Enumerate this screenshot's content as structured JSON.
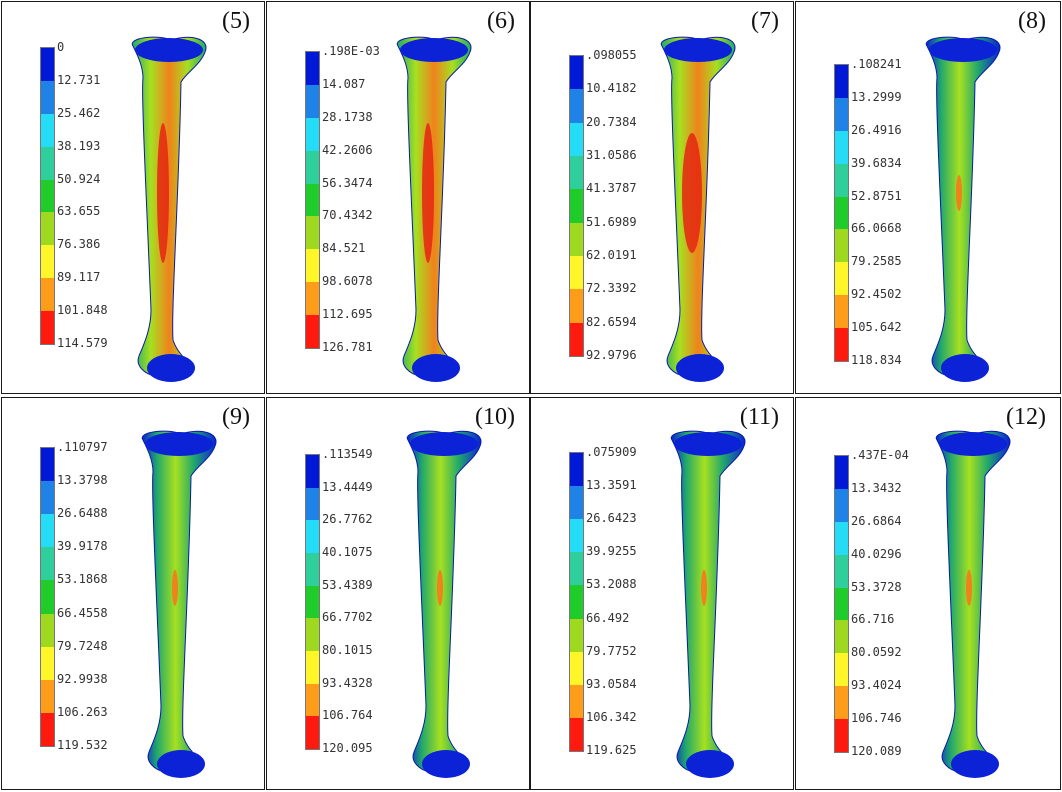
{
  "colors": {
    "scale": [
      "#0019d6",
      "#1f82e6",
      "#25dcf6",
      "#2ecf9a",
      "#1fcc2a",
      "#9ed81f",
      "#fff62a",
      "#ff9d1a",
      "#ff1a10"
    ],
    "bone_dark": "#0b22d6",
    "bone_mid": "#21a86b",
    "bone_light": "#a6e020",
    "bone_hot": "#f0821c",
    "bone_core": "#e52612"
  },
  "panels": [
    {
      "label": "(5)",
      "ticks": [
        "0",
        "12.731",
        "25.462",
        "38.193",
        "50.924",
        "63.655",
        "76.386",
        "89.117",
        "101.848",
        "114.579"
      ],
      "intensity": "high"
    },
    {
      "label": "(6)",
      "ticks": [
        ".198E-03",
        "14.087",
        "28.1738",
        "42.2606",
        "56.3474",
        "70.4342",
        "84.521",
        "98.6078",
        "112.695",
        "126.781"
      ],
      "intensity": "mid-high"
    },
    {
      "label": "(7)",
      "ticks": [
        ".098055",
        "10.4182",
        "20.7384",
        "31.0586",
        "41.3787",
        "51.6989",
        "62.0191",
        "72.3392",
        "82.6594",
        "92.9796"
      ],
      "intensity": "max"
    },
    {
      "label": "(8)",
      "ticks": [
        ".108241",
        "13.2999",
        "26.4916",
        "39.6834",
        "52.8751",
        "66.0668",
        "79.2585",
        "92.4502",
        "105.642",
        "118.834"
      ],
      "intensity": "low"
    },
    {
      "label": "(9)",
      "ticks": [
        ".110797",
        "13.3798",
        "26.6488",
        "39.9178",
        "53.1868",
        "66.4558",
        "79.7248",
        "92.9938",
        "106.263",
        "119.532"
      ],
      "intensity": "low"
    },
    {
      "label": "(10)",
      "ticks": [
        ".113549",
        "13.4449",
        "26.7762",
        "40.1075",
        "53.4389",
        "66.7702",
        "80.1015",
        "93.4328",
        "106.764",
        "120.095"
      ],
      "intensity": "low"
    },
    {
      "label": "(11)",
      "ticks": [
        ".075909",
        "13.3591",
        "26.6423",
        "39.9255",
        "53.2088",
        "66.492",
        "79.7752",
        "93.0584",
        "106.342",
        "119.625"
      ],
      "intensity": "low"
    },
    {
      "label": "(12)",
      "ticks": [
        ".437E-04",
        "13.3432",
        "26.6864",
        "40.0296",
        "53.3728",
        "66.716",
        "80.0592",
        "93.4024",
        "106.746",
        "120.089"
      ],
      "intensity": "low"
    }
  ]
}
